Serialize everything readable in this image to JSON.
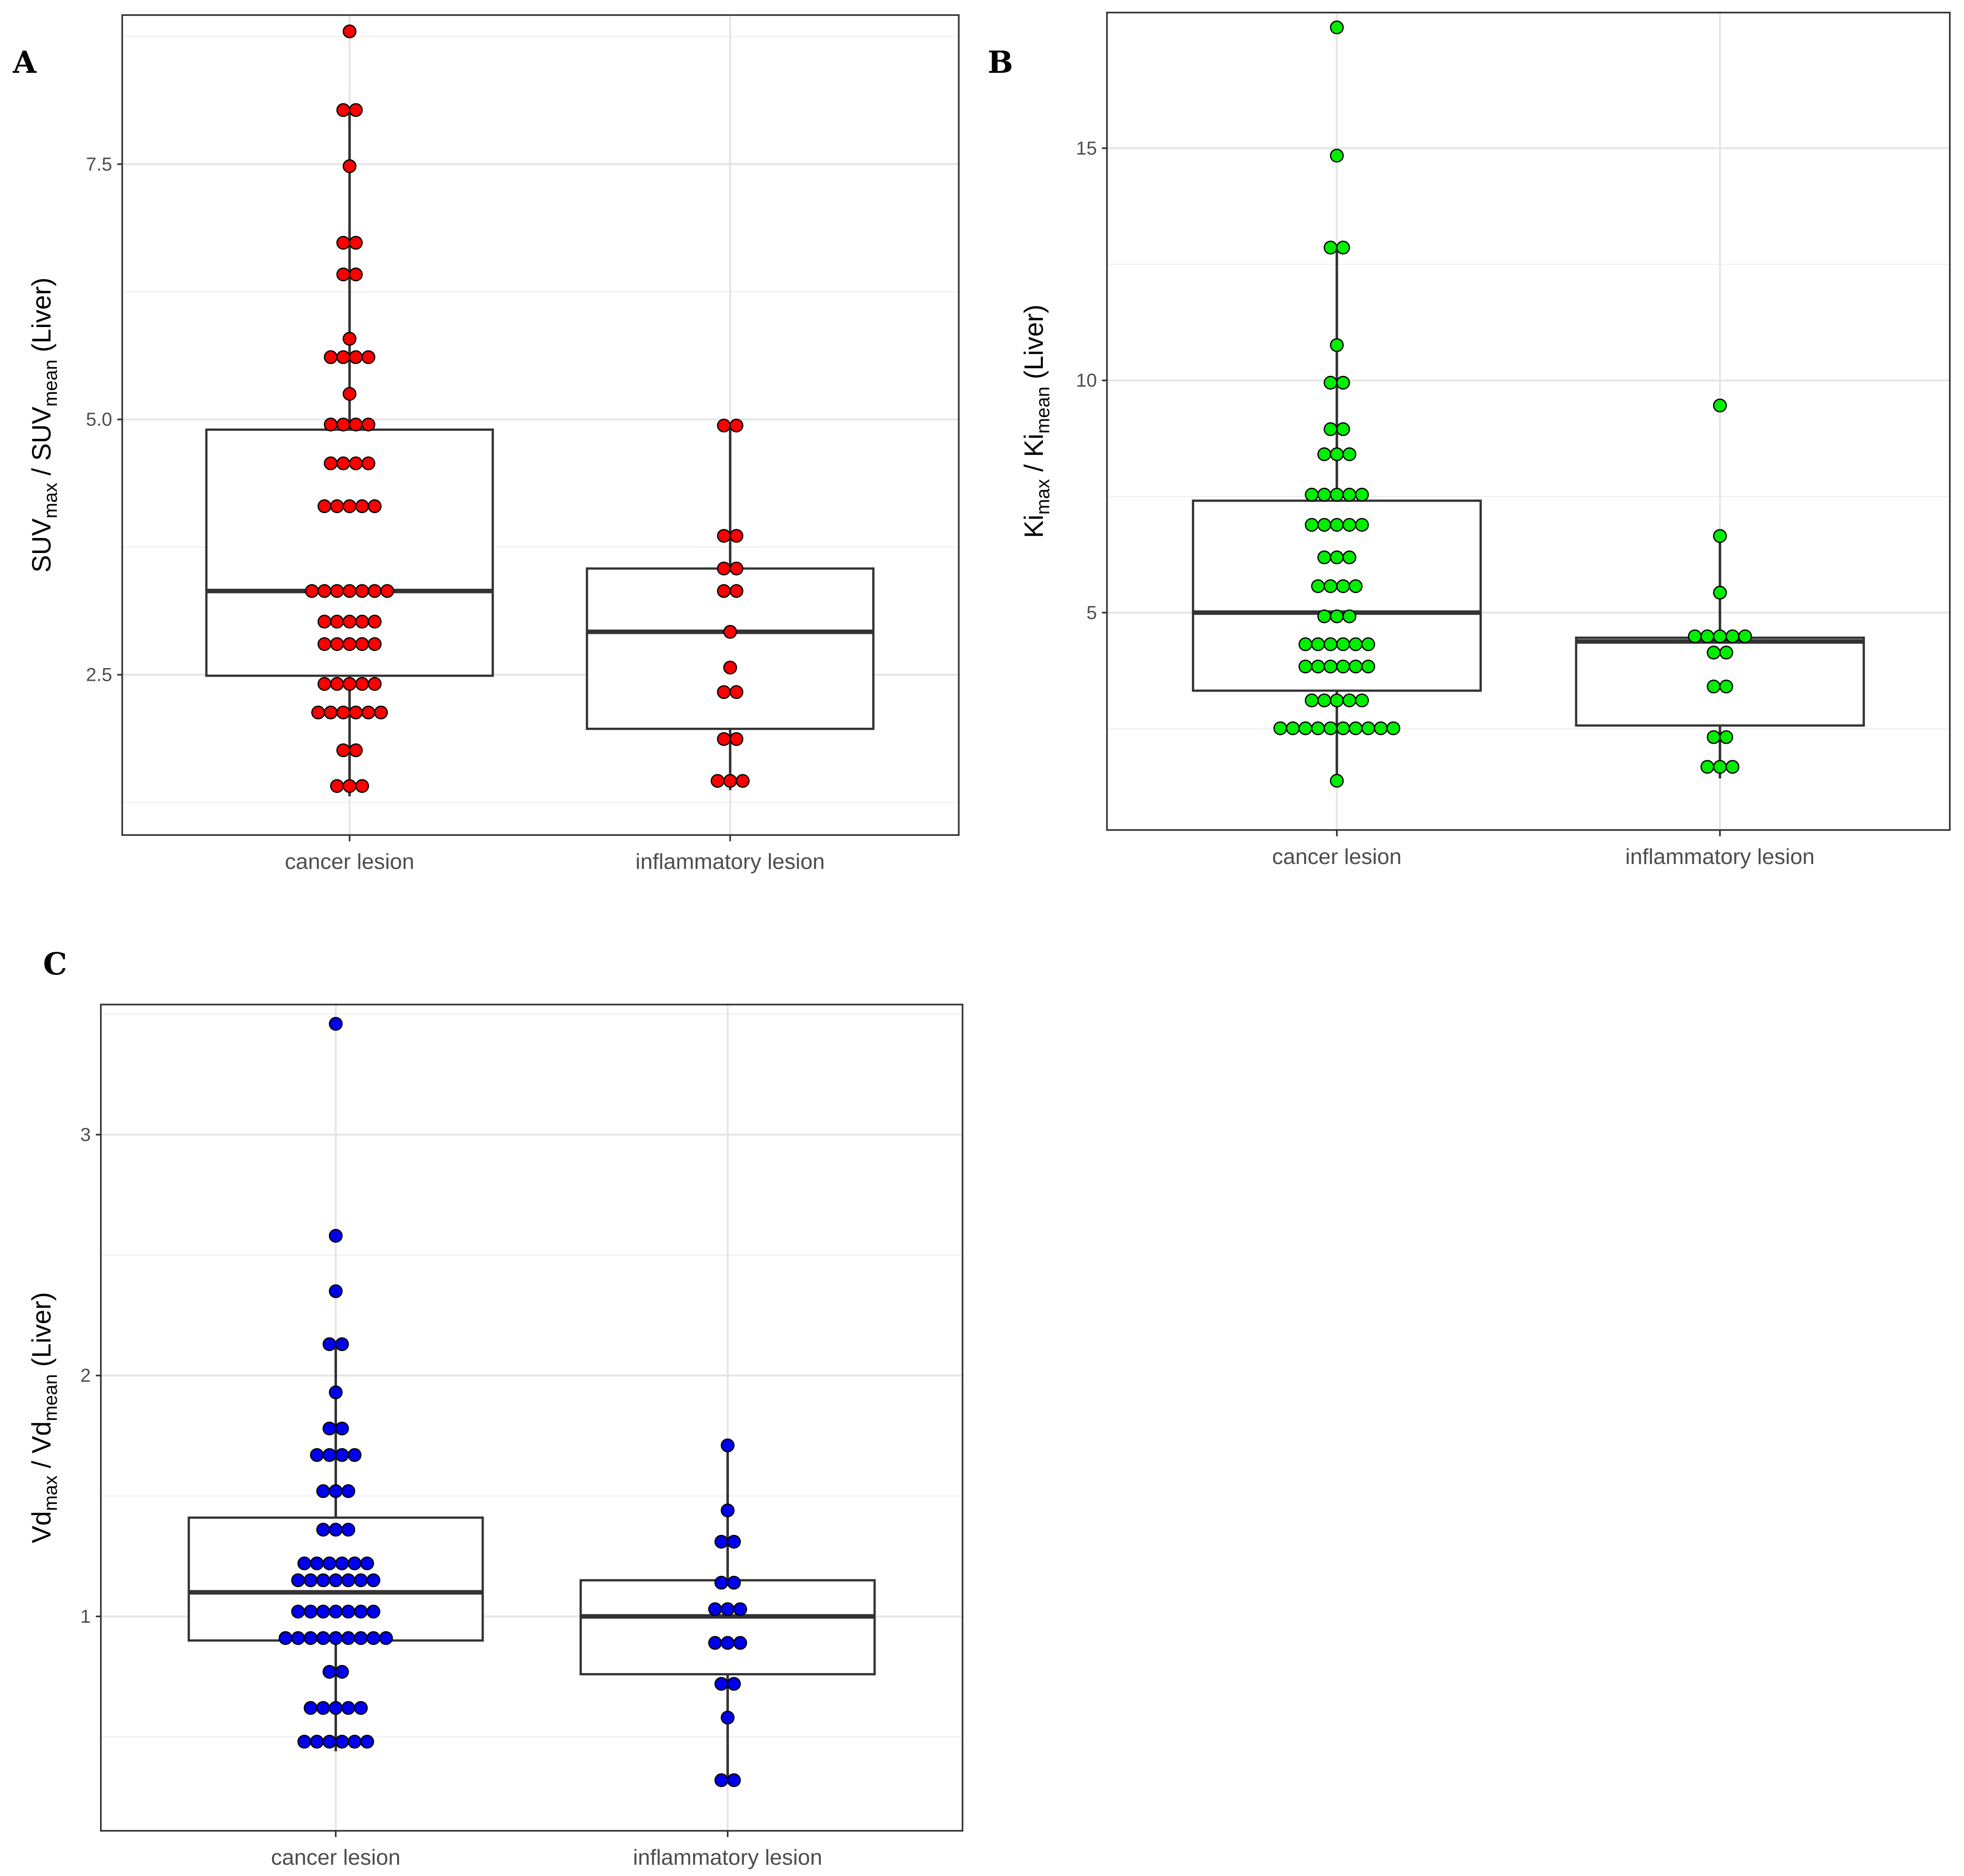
{
  "chart_data": [
    {
      "type": "boxplot-dotplot",
      "panel": "A",
      "categories": [
        "cancer lesion",
        "inflammatory lesion"
      ],
      "ylabel_parts": [
        "SUV",
        "max",
        " / SUV",
        "mean",
        " (Liver)"
      ],
      "ylim": [
        0.93,
        8.96
      ],
      "yticks": [
        2.5,
        5.0,
        7.5
      ],
      "ytick_labels": [
        "2.5",
        "5.0",
        "7.5"
      ],
      "minor_grid": [
        1.25,
        3.75,
        6.25,
        8.75
      ],
      "dot_color": "#ff0000",
      "groups": [
        {
          "box": {
            "whisker_low": 1.31,
            "q1": 2.49,
            "median": 3.32,
            "q3": 4.9,
            "whisker_high": 8.03
          },
          "dots": [
            {
              "y": 8.8,
              "n": 1
            },
            {
              "y": 8.03,
              "n": 2
            },
            {
              "y": 7.48,
              "n": 1
            },
            {
              "y": 6.73,
              "n": 2
            },
            {
              "y": 6.42,
              "n": 2
            },
            {
              "y": 5.79,
              "n": 1
            },
            {
              "y": 5.61,
              "n": 4
            },
            {
              "y": 5.25,
              "n": 1
            },
            {
              "y": 4.95,
              "n": 4
            },
            {
              "y": 4.57,
              "n": 4
            },
            {
              "y": 4.15,
              "n": 5
            },
            {
              "y": 3.32,
              "n": 7
            },
            {
              "y": 3.02,
              "n": 5
            },
            {
              "y": 2.8,
              "n": 5
            },
            {
              "y": 2.41,
              "n": 5
            },
            {
              "y": 2.13,
              "n": 6
            },
            {
              "y": 1.76,
              "n": 2
            },
            {
              "y": 1.41,
              "n": 3
            }
          ]
        },
        {
          "box": {
            "whisker_low": 1.37,
            "q1": 1.97,
            "median": 2.92,
            "q3": 3.54,
            "whisker_high": 4.94
          },
          "dots": [
            {
              "y": 4.94,
              "n": 2
            },
            {
              "y": 3.86,
              "n": 2
            },
            {
              "y": 3.54,
              "n": 2
            },
            {
              "y": 3.32,
              "n": 2
            },
            {
              "y": 2.92,
              "n": 1
            },
            {
              "y": 2.57,
              "n": 1
            },
            {
              "y": 2.33,
              "n": 2
            },
            {
              "y": 1.87,
              "n": 2
            },
            {
              "y": 1.46,
              "n": 3
            }
          ]
        }
      ]
    },
    {
      "type": "boxplot-dotplot",
      "panel": "B",
      "categories": [
        "cancer lesion",
        "inflammatory lesion"
      ],
      "ylabel_parts": [
        "Ki",
        "max",
        " / Ki",
        "mean",
        " (Liver)"
      ],
      "ylim": [
        0.32,
        17.92
      ],
      "yticks": [
        5,
        10,
        15
      ],
      "ytick_labels": [
        "5",
        "10",
        "15"
      ],
      "minor_grid": [
        2.5,
        7.5,
        12.5
      ],
      "dot_color": "#00ee00",
      "groups": [
        {
          "box": {
            "whisker_low": 1.38,
            "q1": 3.32,
            "median": 5.0,
            "q3": 7.41,
            "whisker_high": 12.86
          },
          "dots": [
            {
              "y": 17.6,
              "n": 1
            },
            {
              "y": 14.84,
              "n": 1
            },
            {
              "y": 12.86,
              "n": 2
            },
            {
              "y": 10.76,
              "n": 1
            },
            {
              "y": 9.95,
              "n": 2
            },
            {
              "y": 8.95,
              "n": 2
            },
            {
              "y": 8.41,
              "n": 3
            },
            {
              "y": 7.54,
              "n": 5
            },
            {
              "y": 6.89,
              "n": 5
            },
            {
              "y": 6.19,
              "n": 3
            },
            {
              "y": 5.57,
              "n": 4
            },
            {
              "y": 4.92,
              "n": 3
            },
            {
              "y": 4.32,
              "n": 6
            },
            {
              "y": 3.84,
              "n": 6
            },
            {
              "y": 3.11,
              "n": 5
            },
            {
              "y": 2.51,
              "n": 10
            },
            {
              "y": 1.38,
              "n": 1
            }
          ]
        },
        {
          "box": {
            "whisker_low": 1.43,
            "q1": 2.57,
            "median": 4.38,
            "q3": 4.46,
            "whisker_high": 6.65
          },
          "dots": [
            {
              "y": 9.46,
              "n": 1
            },
            {
              "y": 6.65,
              "n": 1
            },
            {
              "y": 5.43,
              "n": 1
            },
            {
              "y": 4.49,
              "n": 5
            },
            {
              "y": 4.14,
              "n": 2
            },
            {
              "y": 3.41,
              "n": 2
            },
            {
              "y": 2.32,
              "n": 2
            },
            {
              "y": 1.68,
              "n": 3
            }
          ]
        }
      ]
    },
    {
      "type": "boxplot-dotplot",
      "panel": "C",
      "categories": [
        "cancer lesion",
        "inflammatory lesion"
      ],
      "ylabel_parts": [
        "Vd",
        "max",
        " / Vd",
        "mean",
        " (Liver)"
      ],
      "ylim": [
        0.11,
        3.54
      ],
      "yticks": [
        1,
        2,
        3
      ],
      "ytick_labels": [
        "1",
        "2",
        "3"
      ],
      "minor_grid": [
        0.5,
        1.5,
        2.5,
        3.5
      ],
      "dot_color": "#0000ee",
      "groups": [
        {
          "box": {
            "whisker_low": 0.44,
            "q1": 0.9,
            "median": 1.1,
            "q3": 1.41,
            "whisker_high": 2.13
          },
          "dots": [
            {
              "y": 3.46,
              "n": 1
            },
            {
              "y": 2.58,
              "n": 1
            },
            {
              "y": 2.35,
              "n": 1
            },
            {
              "y": 2.13,
              "n": 2
            },
            {
              "y": 1.93,
              "n": 1
            },
            {
              "y": 1.78,
              "n": 2
            },
            {
              "y": 1.67,
              "n": 4
            },
            {
              "y": 1.52,
              "n": 3
            },
            {
              "y": 1.36,
              "n": 3
            },
            {
              "y": 1.22,
              "n": 6
            },
            {
              "y": 1.15,
              "n": 7
            },
            {
              "y": 1.02,
              "n": 7
            },
            {
              "y": 0.91,
              "n": 9
            },
            {
              "y": 0.77,
              "n": 2
            },
            {
              "y": 0.62,
              "n": 5
            },
            {
              "y": 0.48,
              "n": 6
            }
          ]
        },
        {
          "box": {
            "whisker_low": 0.32,
            "q1": 0.76,
            "median": 1.0,
            "q3": 1.15,
            "whisker_high": 1.71
          },
          "dots": [
            {
              "y": 1.71,
              "n": 1
            },
            {
              "y": 1.44,
              "n": 1
            },
            {
              "y": 1.31,
              "n": 2
            },
            {
              "y": 1.14,
              "n": 2
            },
            {
              "y": 1.03,
              "n": 3
            },
            {
              "y": 0.89,
              "n": 3
            },
            {
              "y": 0.72,
              "n": 2
            },
            {
              "y": 0.58,
              "n": 1
            },
            {
              "y": 0.32,
              "n": 2
            }
          ]
        }
      ]
    }
  ]
}
